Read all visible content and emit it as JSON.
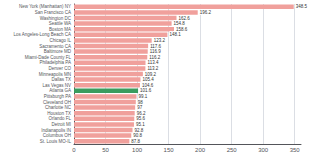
{
  "chart_data": {
    "type": "bar",
    "orientation": "horizontal",
    "categories": [
      "New York (Manhattan) NY",
      "San Francisco CA",
      "Washington DC",
      "Seattle WA",
      "Boston MA",
      "Los Angeles-Long Beach CA",
      "Chicago IL",
      "Sacramento CA",
      "Baltimore MD",
      "Miami-Dade County FL",
      "Philadelphia PA",
      "Denver CO",
      "Minneapolis MN",
      "Dallas TX",
      "Las Vegas NV",
      "Atlanta GA",
      "Pittsburgh PA",
      "Cleveland OH",
      "Charlotte NC",
      "Houston TX",
      "Orlando FL",
      "Detroit MI",
      "Indianapolis IN",
      "Columbus OH",
      "St. Louis MO-IL"
    ],
    "values": [
      348.5,
      196.2,
      162.6,
      154.8,
      158.6,
      148.1,
      123.2,
      117.6,
      116.9,
      116.2,
      113.4,
      113.2,
      109.2,
      105.4,
      104.6,
      101.6,
      99.1,
      98.0,
      97.0,
      96.2,
      95.6,
      95.1,
      92.8,
      90.8,
      87.8
    ],
    "colors": [
      "#f0a09c",
      "#f0a09c",
      "#f0a09c",
      "#f0a09c",
      "#f0a09c",
      "#f0a09c",
      "#f0a09c",
      "#f0a09c",
      "#f0a09c",
      "#f0a09c",
      "#f0a09c",
      "#f0a09c",
      "#f0a09c",
      "#f0a09c",
      "#f0a09c",
      "#3a9c5f",
      "#f0a09c",
      "#f0a09c",
      "#f0a09c",
      "#f0a09c",
      "#f0a09c",
      "#f0a09c",
      "#f0a09c",
      "#f0a09c",
      "#f0a09c"
    ],
    "xlim": [
      0,
      360
    ],
    "xticks": [
      0,
      50,
      100,
      150,
      200,
      250,
      300,
      350
    ],
    "grid": true,
    "data_labels": true
  }
}
